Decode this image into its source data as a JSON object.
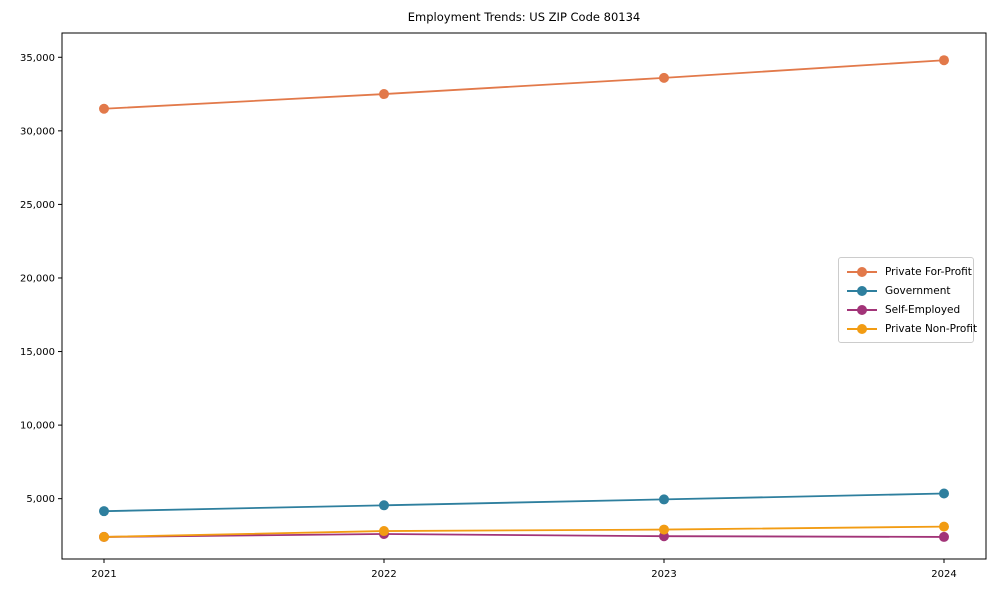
{
  "title": "Employment Trends: US ZIP Code 80134",
  "chart_data": {
    "type": "line",
    "title": "Employment Trends: US ZIP Code 80134",
    "categories": [
      "2021",
      "2022",
      "2023",
      "2024"
    ],
    "x": [
      2021,
      2022,
      2023,
      2024
    ],
    "series": [
      {
        "name": "Private For-Profit",
        "color": "#e2794a",
        "values": [
          31500,
          32500,
          33600,
          34800
        ]
      },
      {
        "name": "Government",
        "color": "#2e7f9e",
        "values": [
          4150,
          4550,
          4950,
          5350
        ]
      },
      {
        "name": "Self-Employed",
        "color": "#a23478",
        "values": [
          2400,
          2600,
          2450,
          2400
        ]
      },
      {
        "name": "Private Non-Profit",
        "color": "#f29c13",
        "values": [
          2400,
          2800,
          2900,
          3100
        ]
      }
    ],
    "xlabel": "",
    "ylabel": "",
    "xlim": [
      2020.85,
      2024.15
    ],
    "ylim": [
      900,
      36650
    ],
    "yticks": [
      5000,
      10000,
      15000,
      20000,
      25000,
      30000,
      35000
    ],
    "ytick_labels": [
      "5,000",
      "10,000",
      "15,000",
      "20,000",
      "25,000",
      "30,000",
      "35,000"
    ],
    "grid": false,
    "legend_position": "center-right",
    "axis_color": "#000000",
    "background": "#ffffff",
    "marker": "circle",
    "marker_size": 10,
    "line_width": 1.8
  }
}
